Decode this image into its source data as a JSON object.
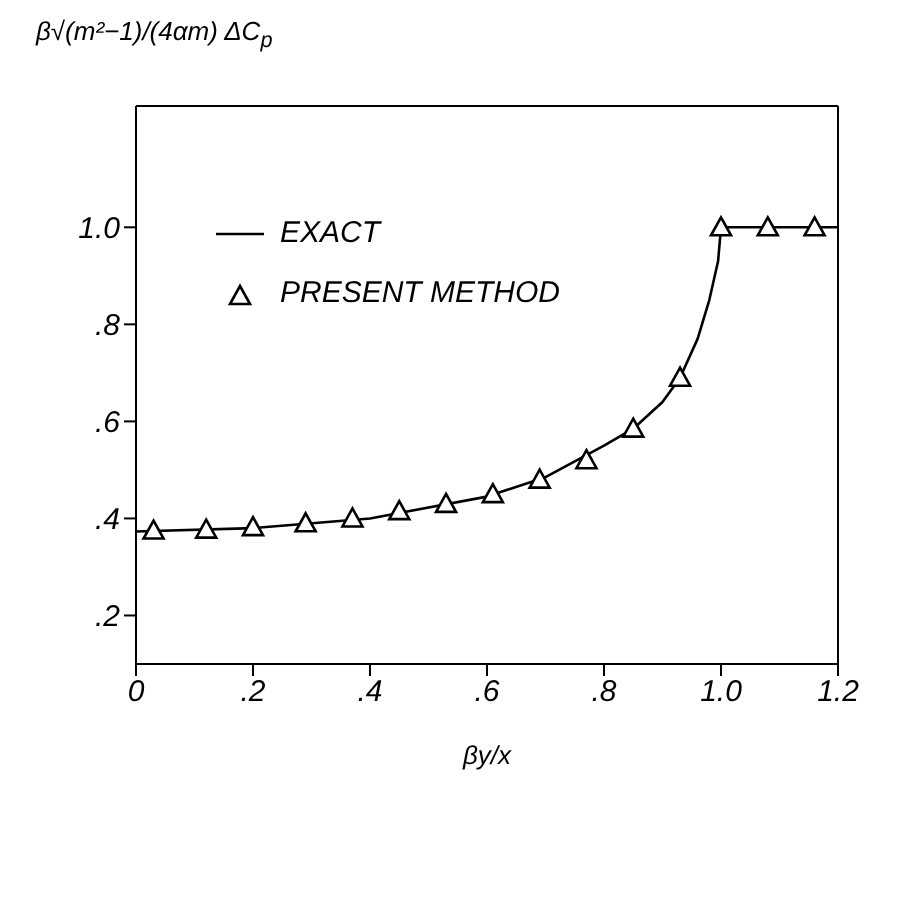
{
  "chart_data": {
    "type": "line",
    "ylabel": "β√(m²−1)/(4αm) ΔC$_{p}$",
    "xlabel": "βy/x",
    "xlim": [
      0,
      1.2
    ],
    "xticks": [
      {
        "value": 0,
        "label": "0"
      },
      {
        "value": 0.2,
        "label": ".2"
      },
      {
        "value": 0.4,
        "label": ".4"
      },
      {
        "value": 0.6,
        "label": ".6"
      },
      {
        "value": 0.8,
        "label": ".8"
      },
      {
        "value": 1,
        "label": "1.0"
      },
      {
        "value": 1.2,
        "label": "1.2"
      }
    ],
    "ylim": [
      0.1,
      1.25
    ],
    "yticks": [
      {
        "value": 0.2,
        "label": ".2"
      },
      {
        "value": 0.4,
        "label": ".4"
      },
      {
        "value": 0.6,
        "label": ".6"
      },
      {
        "value": 0.8,
        "label": ".8"
      },
      {
        "value": 1,
        "label": "1.0"
      }
    ],
    "grid": false,
    "legend": "top left",
    "series": [
      {
        "name": "EXACT",
        "color": "#000000",
        "marker": "none",
        "line_style": "solid",
        "x": [
          0,
          0.2,
          0.4,
          0.6,
          0.7,
          0.8,
          0.85,
          0.9,
          0.93,
          0.96,
          0.98,
          0.995,
          1.0,
          1.2
        ],
        "values": [
          0.373,
          0.38,
          0.4,
          0.445,
          0.485,
          0.55,
          0.585,
          0.64,
          0.69,
          0.77,
          0.85,
          0.93,
          1.0,
          1.0
        ]
      },
      {
        "name": "PRESENT METHOD",
        "type": "scatter",
        "color": "#000000",
        "marker": "triangle",
        "x": [
          0.03,
          0.12,
          0.2,
          0.29,
          0.37,
          0.45,
          0.53,
          0.61,
          0.69,
          0.77,
          0.85,
          0.93,
          1.0,
          1.08,
          1.16
        ],
        "values": [
          0.375,
          0.377,
          0.382,
          0.39,
          0.4,
          0.415,
          0.43,
          0.45,
          0.48,
          0.52,
          0.585,
          0.69,
          1.0,
          1.0,
          1.0
        ]
      }
    ]
  }
}
